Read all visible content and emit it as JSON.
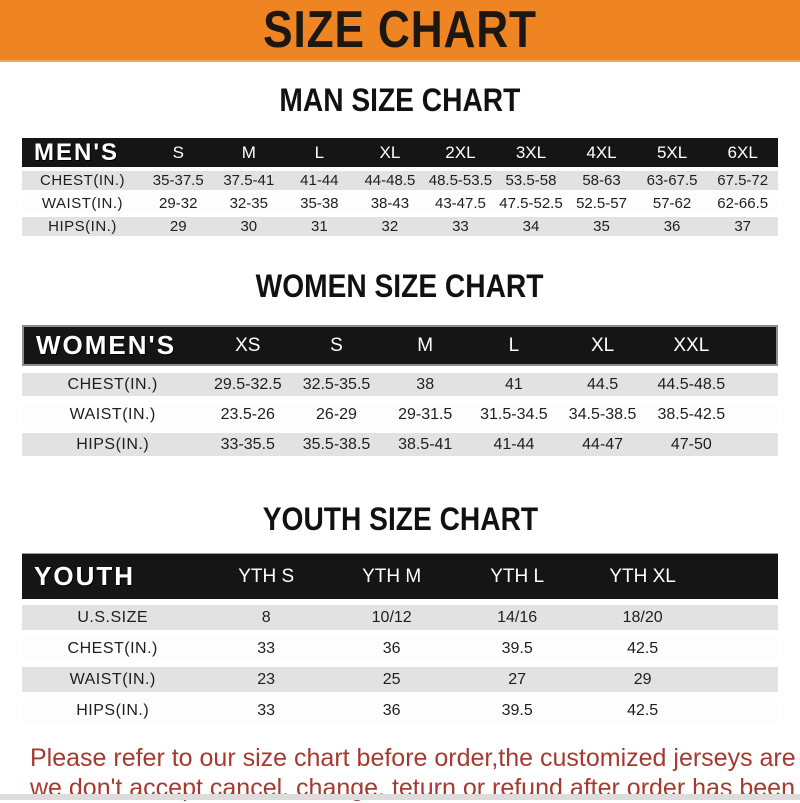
{
  "banner": {
    "title": "SIZE CHART"
  },
  "sections": [
    {
      "heading": "MAN SIZE CHART",
      "header_label": "MEN'S",
      "columns": [
        "S",
        "M",
        "L",
        "XL",
        "2XL",
        "3XL",
        "4XL",
        "5XL",
        "6XL"
      ],
      "rows": [
        {
          "label": "CHEST(IN.)",
          "values": [
            "35-37.5",
            "37.5-41",
            "41-44",
            "44-48.5",
            "48.5-53.5",
            "53.5-58",
            "58-63",
            "63-67.5",
            "67.5-72"
          ]
        },
        {
          "label": "WAIST(IN.)",
          "values": [
            "29-32",
            "32-35",
            "35-38",
            "38-43",
            "43-47.5",
            "47.5-52.5",
            "52.5-57",
            "57-62",
            "62-66.5"
          ]
        },
        {
          "label": "HIPS(IN.)",
          "values": [
            "29",
            "30",
            "31",
            "32",
            "33",
            "34",
            "35",
            "36",
            "37"
          ]
        }
      ]
    },
    {
      "heading": "WOMEN SIZE CHART",
      "header_label": "WOMEN'S",
      "columns": [
        "XS",
        "S",
        "M",
        "L",
        "XL",
        "XXL"
      ],
      "rows": [
        {
          "label": "CHEST(IN.)",
          "values": [
            "29.5-32.5",
            "32.5-35.5",
            "38",
            "41",
            "44.5",
            "44.5-48.5"
          ]
        },
        {
          "label": "WAIST(IN.)",
          "values": [
            "23.5-26",
            "26-29",
            "29-31.5",
            "31.5-34.5",
            "34.5-38.5",
            "38.5-42.5"
          ]
        },
        {
          "label": "HIPS(IN.)",
          "values": [
            "33-35.5",
            "35.5-38.5",
            "38.5-41",
            "41-44",
            "44-47",
            "47-50"
          ]
        }
      ]
    },
    {
      "heading": "YOUTH SIZE CHART",
      "header_label": "YOUTH",
      "columns": [
        "YTH S",
        "YTH M",
        "YTH L",
        "YTH XL"
      ],
      "rows": [
        {
          "label": "U.S.SIZE",
          "values": [
            "8",
            "10/12",
            "14/16",
            "18/20"
          ]
        },
        {
          "label": "CHEST(IN.)",
          "values": [
            "33",
            "36",
            "39.5",
            "42.5"
          ]
        },
        {
          "label": "WAIST(IN.)",
          "values": [
            "23",
            "25",
            "27",
            "29"
          ]
        },
        {
          "label": "HIPS(IN.)",
          "values": [
            "33",
            "36",
            "39.5",
            "42.5"
          ]
        }
      ]
    }
  ],
  "footer": {
    "line1": "Please refer to our size chart before order,the customized jerseys are special products,",
    "line2": "we don't accept cancel, change, teturn or refund after order has been placed!"
  },
  "colors": {
    "banner_bg": "#EE8522",
    "bar_bg": "#151515",
    "row_gray": "#E2E2E2",
    "heading_text": "#111111",
    "footer_red": "#A63A30"
  }
}
